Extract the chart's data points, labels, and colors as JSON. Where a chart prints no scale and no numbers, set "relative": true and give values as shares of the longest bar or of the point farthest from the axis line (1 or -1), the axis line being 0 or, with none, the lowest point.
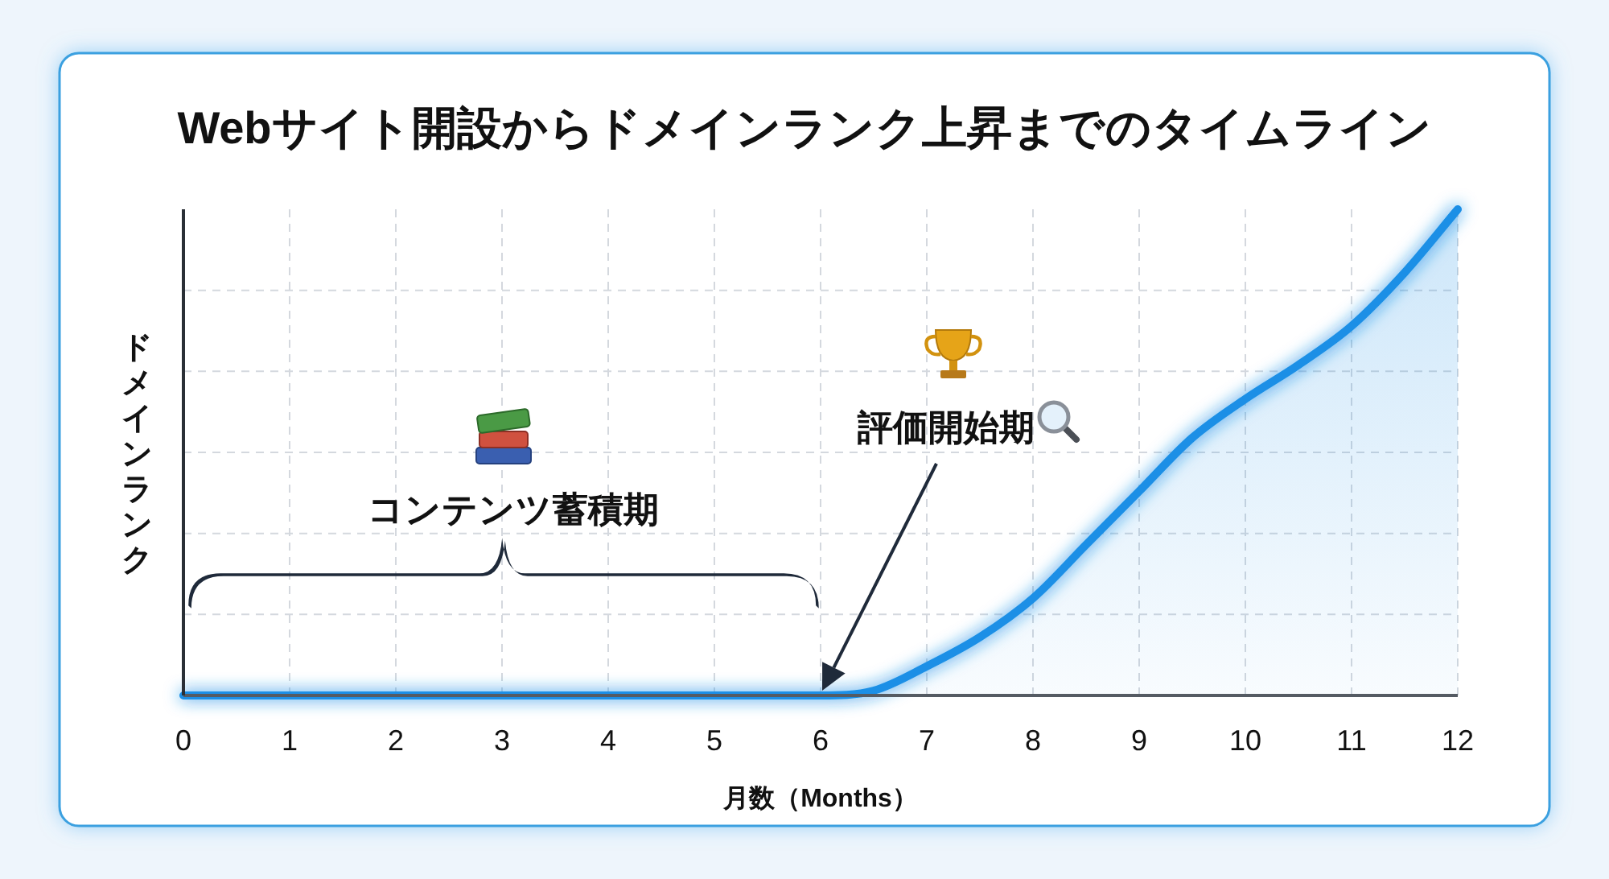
{
  "chart_data": {
    "type": "area",
    "title": "Webサイト開設からドメインランク上昇までのタイムライン",
    "xlabel": "月数（Months）",
    "ylabel": "ドメインランク",
    "relative": true,
    "x": [
      0,
      1,
      2,
      3,
      4,
      5,
      6,
      6.5,
      7,
      7.5,
      8,
      8.5,
      9,
      9.5,
      10,
      10.5,
      11,
      11.5,
      12
    ],
    "series": [
      {
        "color": "#1a8fe6",
        "values": [
          0,
          0,
          0,
          0,
          0,
          0,
          0,
          0.01,
          0.06,
          0.12,
          0.2,
          0.31,
          0.42,
          0.53,
          0.61,
          0.68,
          0.76,
          0.87,
          1
        ]
      }
    ],
    "xlim": [
      0,
      12
    ],
    "xticks": [
      0,
      1,
      2,
      3,
      4,
      5,
      6,
      7,
      8,
      9,
      10,
      11,
      12
    ],
    "grid": true,
    "tick_labels": "x",
    "annotations": [
      "コンテンツ蓄積期",
      "評価開始期"
    ]
  }
}
